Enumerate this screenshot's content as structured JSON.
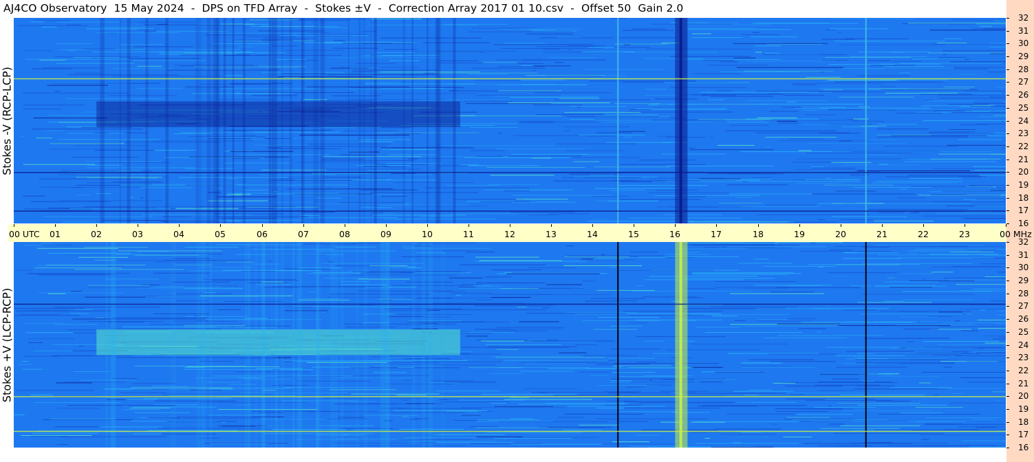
{
  "title": "AJ4CO Observatory  15 May 2024  -  DPS on TFD Array  -  Stokes ±V  -  Correction Array 2017 01 10.csv  -  Offset 50  Gain 2.0",
  "chart_data": [
    {
      "type": "heatmap",
      "panel": "top",
      "ylabel": "Stokes -V (RCP-LCP)",
      "x_unit": "UTC",
      "x_ticks": [
        "00 UTC",
        "01",
        "02",
        "03",
        "04",
        "05",
        "06",
        "07",
        "08",
        "09",
        "10",
        "11",
        "12",
        "13",
        "14",
        "15",
        "16",
        "17",
        "18",
        "19",
        "20",
        "21",
        "22",
        "23",
        "00 MHz"
      ],
      "xlim": [
        0,
        24
      ],
      "y_unit": "MHz",
      "y_ticks": [
        "16",
        "17",
        "18",
        "19",
        "20",
        "21",
        "22",
        "23",
        "24",
        "25",
        "26",
        "27",
        "28",
        "29",
        "30",
        "31",
        "32"
      ],
      "ylim": [
        16,
        32
      ],
      "colormap": [
        "#0a1a8c",
        "#1448c8",
        "#1e78f0",
        "#2ab4f5",
        "#58e6c8",
        "#c8f048"
      ],
      "features": [
        {
          "kind": "dark-region",
          "x": [
            2.0,
            10.8
          ],
          "y": [
            23.5,
            25.5
          ]
        },
        {
          "kind": "vertical-line",
          "x": 14.6,
          "color": "#3fb8e6"
        },
        {
          "kind": "vertical-band",
          "x": [
            16.0,
            16.3
          ],
          "color": "#0a1a8c"
        },
        {
          "kind": "vertical-line",
          "x": 20.6,
          "color": "#3fb8e6"
        },
        {
          "kind": "horizontal-line",
          "y": 27.3,
          "color": "#c8f048"
        },
        {
          "kind": "horizontal-line",
          "y": 20.0,
          "color": "#0a1a8c"
        },
        {
          "kind": "horizontal-line",
          "y": 17.0,
          "color": "#0a1a8c"
        }
      ]
    },
    {
      "type": "heatmap",
      "panel": "bottom",
      "ylabel": "Stokes +V (LCP-RCP)",
      "x_unit": "UTC",
      "x_ticks": [
        "00 UTC",
        "01",
        "02",
        "03",
        "04",
        "05",
        "06",
        "07",
        "08",
        "09",
        "10",
        "11",
        "12",
        "13",
        "14",
        "15",
        "16",
        "17",
        "18",
        "19",
        "20",
        "21",
        "22",
        "23",
        "00 MHz"
      ],
      "xlim": [
        0,
        24
      ],
      "y_unit": "MHz",
      "y_ticks": [
        "16",
        "17",
        "18",
        "19",
        "20",
        "21",
        "22",
        "23",
        "24",
        "25",
        "26",
        "27",
        "28",
        "29",
        "30",
        "31",
        "32"
      ],
      "ylim": [
        16,
        32
      ],
      "colormap": [
        "#0a1a8c",
        "#1448c8",
        "#1e78f0",
        "#2ab4f5",
        "#58e6c8",
        "#c8f048"
      ],
      "features": [
        {
          "kind": "bright-region",
          "x": [
            2.0,
            10.8
          ],
          "y": [
            23.2,
            25.2
          ]
        },
        {
          "kind": "vertical-line",
          "x": 14.6,
          "color": "#000000"
        },
        {
          "kind": "vertical-band",
          "x": [
            16.0,
            16.3
          ],
          "color": "#c8f048"
        },
        {
          "kind": "vertical-line",
          "x": 20.6,
          "color": "#000000"
        },
        {
          "kind": "horizontal-line",
          "y": 27.2,
          "color": "#0a1a8c"
        },
        {
          "kind": "horizontal-line",
          "y": 20.0,
          "color": "#c8f048"
        },
        {
          "kind": "horizontal-line",
          "y": 17.3,
          "color": "#c8f048"
        }
      ]
    }
  ]
}
